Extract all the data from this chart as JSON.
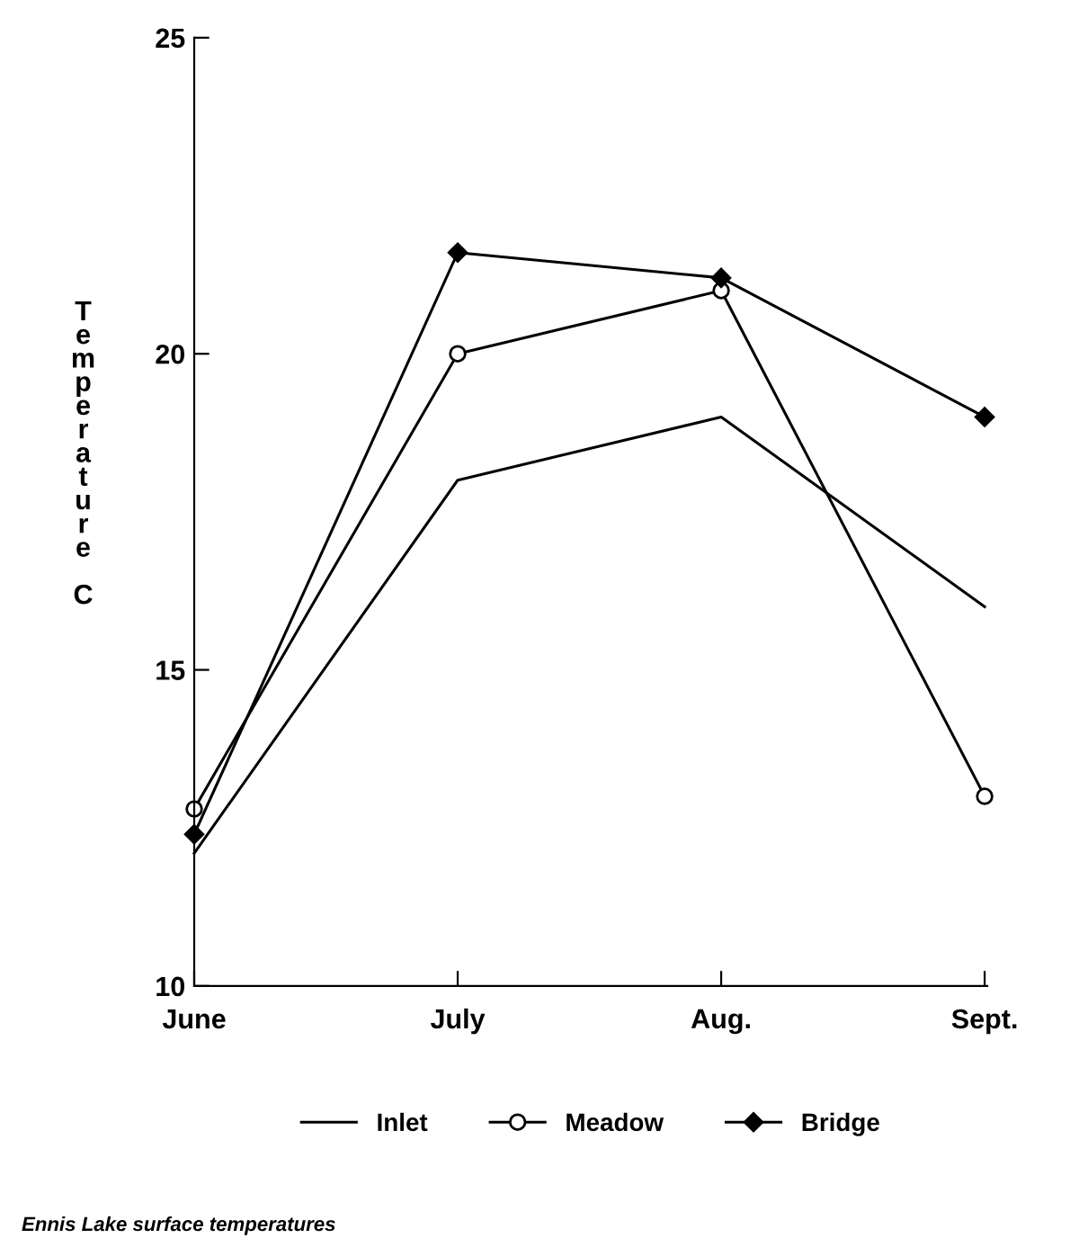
{
  "chart_data": {
    "type": "line",
    "ylabel": "Temperature C",
    "categories": [
      "June",
      "July",
      "Aug.",
      "Sept."
    ],
    "series": [
      {
        "name": "Inlet",
        "color": "#000000",
        "marker": "none",
        "values": [
          12.1,
          18.0,
          19.0,
          16.0
        ]
      },
      {
        "name": "Meadow",
        "color": "#000000",
        "marker": "circle",
        "values": [
          12.8,
          20.0,
          21.0,
          13.0
        ]
      },
      {
        "name": "Bridge",
        "color": "#000000",
        "marker": "diamond",
        "values": [
          12.4,
          21.6,
          21.2,
          19.0
        ]
      }
    ],
    "ylim": [
      10,
      25
    ],
    "yticks": [
      10,
      15,
      20,
      25
    ],
    "grid": false,
    "legend": "bottom",
    "line_style": "solid",
    "annotations": [
      "Ennis Lake surface temperatures"
    ]
  }
}
